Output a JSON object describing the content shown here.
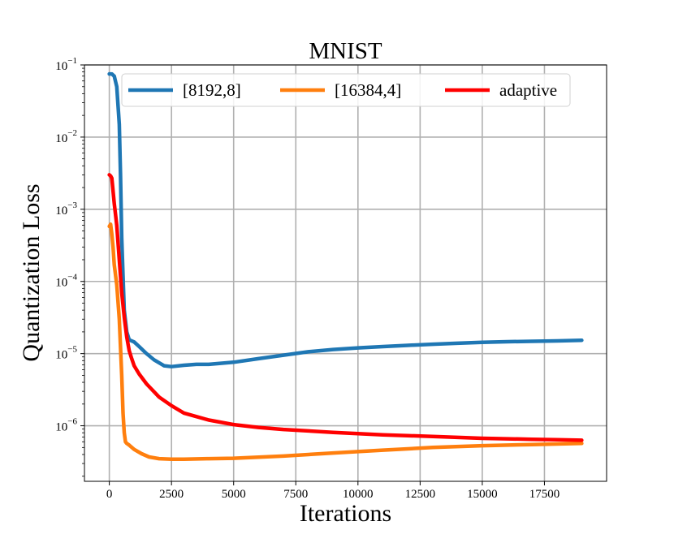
{
  "chart_data": {
    "type": "line",
    "title": "MNIST",
    "xlabel": "Iterations",
    "ylabel": "Quantization Loss",
    "yscale": "log",
    "xlim": [
      -1000,
      20000
    ],
    "ylim": [
      1.7e-07,
      0.1
    ],
    "grid": true,
    "legend_position": "top",
    "x_ticks": [
      {
        "value": 0,
        "label": "0"
      },
      {
        "value": 2500,
        "label": "2500"
      },
      {
        "value": 5000,
        "label": "5000"
      },
      {
        "value": 7500,
        "label": "7500"
      },
      {
        "value": 10000,
        "label": "10000"
      },
      {
        "value": 12500,
        "label": "12500"
      },
      {
        "value": 15000,
        "label": "15000"
      },
      {
        "value": 17500,
        "label": "17500"
      }
    ],
    "y_ticks": [
      {
        "value": 1e-06,
        "base": "10",
        "exp": "−6"
      },
      {
        "value": 1e-05,
        "base": "10",
        "exp": "−5"
      },
      {
        "value": 0.0001,
        "base": "10",
        "exp": "−4"
      },
      {
        "value": 0.001,
        "base": "10",
        "exp": "−3"
      },
      {
        "value": 0.01,
        "base": "10",
        "exp": "−2"
      },
      {
        "value": 0.1,
        "base": "10",
        "exp": "−1"
      }
    ],
    "series": [
      {
        "name": "[8192,8]",
        "color": "#1f77b4",
        "x": [
          0,
          100,
          200,
          300,
          400,
          450,
          500,
          550,
          600,
          700,
          800,
          1000,
          1200,
          1500,
          1800,
          2200,
          2500,
          3000,
          3500,
          4000,
          5000,
          6000,
          7000,
          8000,
          9000,
          10000,
          11000,
          12000,
          13000,
          14000,
          15000,
          16000,
          17000,
          18000,
          19000
        ],
        "values": [
          0.075,
          0.075,
          0.07,
          0.05,
          0.015,
          0.003,
          0.0004,
          0.00012,
          4e-05,
          2e-05,
          1.55e-05,
          1.45e-05,
          1.25e-05,
          1e-05,
          8.2e-06,
          6.8e-06,
          6.6e-06,
          6.9e-06,
          7.1e-06,
          7.1e-06,
          7.6e-06,
          8.5e-06,
          9.5e-06,
          1.06e-05,
          1.14e-05,
          1.2e-05,
          1.25e-05,
          1.3e-05,
          1.35e-05,
          1.39e-05,
          1.43e-05,
          1.46e-05,
          1.48e-05,
          1.5e-05,
          1.53e-05
        ]
      },
      {
        "name": "[16384,4]",
        "color": "#ff7f0e",
        "x": [
          0,
          50,
          100,
          150,
          200,
          300,
          400,
          500,
          550,
          600,
          650,
          700,
          800,
          1000,
          1300,
          1600,
          2000,
          2500,
          3000,
          4000,
          5000,
          7000,
          9000,
          11000,
          13000,
          15000,
          17000,
          19000
        ],
        "values": [
          0.00058,
          0.00062,
          0.00045,
          0.0003,
          0.00017,
          9e-05,
          3e-05,
          5e-06,
          1.5e-06,
          8e-07,
          6e-07,
          5.7e-07,
          5.4e-07,
          4.7e-07,
          4.1e-07,
          3.7e-07,
          3.5e-07,
          3.45e-07,
          3.45e-07,
          3.5e-07,
          3.55e-07,
          3.8e-07,
          4.2e-07,
          4.6e-07,
          5e-07,
          5.3e-07,
          5.5e-07,
          5.7e-07
        ]
      },
      {
        "name": "adaptive",
        "color": "#ff0000",
        "x": [
          0,
          50,
          100,
          150,
          200,
          300,
          400,
          500,
          600,
          700,
          800,
          900,
          1000,
          1200,
          1500,
          2000,
          2500,
          3000,
          4000,
          5000,
          6000,
          7000,
          8000,
          9000,
          10000,
          11000,
          12000,
          13000,
          14000,
          15000,
          16000,
          17000,
          18000,
          19000
        ],
        "values": [
          0.003,
          0.0029,
          0.0027,
          0.0018,
          0.0012,
          0.0006,
          0.0002,
          7e-05,
          3.2e-05,
          1.7e-05,
          1.1e-05,
          8.5e-06,
          6.8e-06,
          5.2e-06,
          3.8e-06,
          2.5e-06,
          1.9e-06,
          1.5e-06,
          1.2e-06,
          1.04e-06,
          9.5e-07,
          8.9e-07,
          8.5e-07,
          8.1e-07,
          7.8e-07,
          7.5e-07,
          7.3e-07,
          7.1e-07,
          6.9e-07,
          6.7e-07,
          6.6e-07,
          6.5e-07,
          6.4e-07,
          6.3e-07
        ]
      }
    ]
  }
}
